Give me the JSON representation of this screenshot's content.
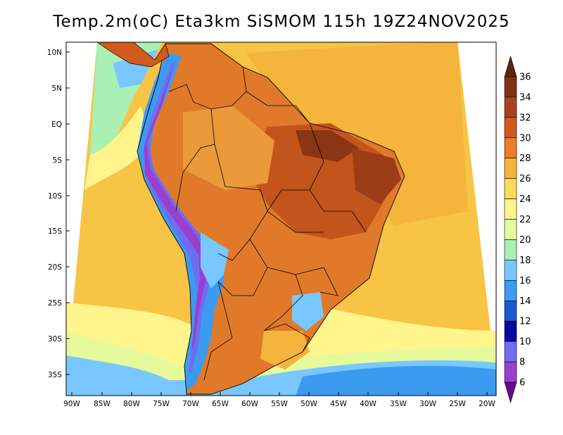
{
  "title": "Temp.2m(oC) Eta3km SiSMOM 115h 19Z24NOV2025",
  "lat_labels": [
    "10N",
    "5N",
    "EQ",
    "5S",
    "10S",
    "15S",
    "20S",
    "25S",
    "30S",
    "35S"
  ],
  "lon_labels": [
    "90W",
    "85W",
    "80W",
    "75W",
    "70W",
    "65W",
    "60W",
    "55W",
    "50W",
    "45W",
    "40W",
    "35W",
    "30W",
    "25W",
    "20W"
  ],
  "colorbar": {
    "labels": [
      "6",
      "8",
      "10",
      "12",
      "14",
      "16",
      "18",
      "20",
      "22",
      "24",
      "26",
      "28",
      "30",
      "32",
      "34",
      "36"
    ],
    "colors": [
      "#6a0a8a",
      "#9b3fd0",
      "#6e6ef0",
      "#0a0aa0",
      "#1e5ad2",
      "#3c9bf0",
      "#78c8ff",
      "#aaf0b4",
      "#e6fa9b",
      "#fff58c",
      "#fadc5a",
      "#f5b43c",
      "#eb7d28",
      "#d25a1e",
      "#aa411e",
      "#823214",
      "#5a230f"
    ]
  },
  "icons": {
    "triangles": "colorbar-end-arrow-icon"
  }
}
